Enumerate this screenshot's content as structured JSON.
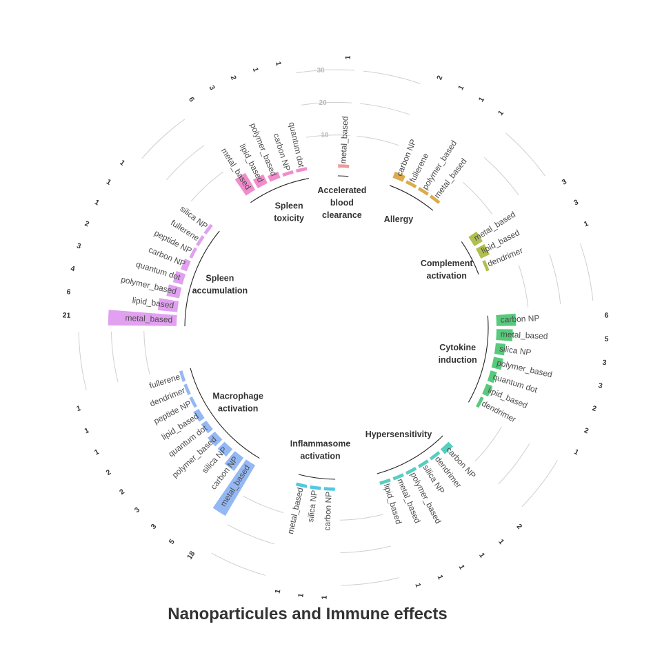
{
  "chart_data": {
    "type": "bar",
    "layout": "circular",
    "title": "Nanoparticules and Immune effects",
    "radial_ticks": [
      "10",
      "20",
      "30"
    ],
    "groups": [
      {
        "name": "Accelerated\nblood\nclearance",
        "color": "#EE8E8E",
        "bars": [
          {
            "label": "metal_based",
            "value": 1
          }
        ]
      },
      {
        "name": "Allergy",
        "color": "#D8A238",
        "bars": [
          {
            "label": "carbon NP",
            "value": 2
          },
          {
            "label": "fullerene",
            "value": 1
          },
          {
            "label": "polymer_based",
            "value": 1
          },
          {
            "label": "metal_based",
            "value": 1
          }
        ]
      },
      {
        "name": "Complement\nactivation",
        "color": "#A9B83E",
        "bars": [
          {
            "label": "metal_based",
            "value": 3
          },
          {
            "label": "lipid_based",
            "value": 3
          },
          {
            "label": "dendrimer",
            "value": 1
          }
        ]
      },
      {
        "name": "Cytokine\ninduction",
        "color": "#45C46E",
        "bars": [
          {
            "label": "carbon NP",
            "value": 6
          },
          {
            "label": "metal_based",
            "value": 5
          },
          {
            "label": "silica NP",
            "value": 3
          },
          {
            "label": "polymer_based",
            "value": 3
          },
          {
            "label": "quantum dot",
            "value": 2
          },
          {
            "label": "lipid_based",
            "value": 2
          },
          {
            "label": "dendrimer",
            "value": 1
          }
        ]
      },
      {
        "name": "Hypersensitivity",
        "color": "#45C9B8",
        "bars": [
          {
            "label": "carbon NP",
            "value": 2
          },
          {
            "label": "dendrimer",
            "value": 1
          },
          {
            "label": "silica NP",
            "value": 1
          },
          {
            "label": "polymer_based",
            "value": 1
          },
          {
            "label": "metal_based",
            "value": 1
          },
          {
            "label": "lipid_based",
            "value": 1
          }
        ]
      },
      {
        "name": "Inflammasome\nactivation",
        "color": "#3FC2DE",
        "bars": [
          {
            "label": "carbon NP",
            "value": 1
          },
          {
            "label": "silica NP",
            "value": 1
          },
          {
            "label": "metal_based",
            "value": 1
          }
        ]
      },
      {
        "name": "Macrophage\nactivation",
        "color": "#88B0F2",
        "bars": [
          {
            "label": "metal_based",
            "value": 18
          },
          {
            "label": "carbon NP",
            "value": 5
          },
          {
            "label": "silica NP",
            "value": 3
          },
          {
            "label": "polymer_based",
            "value": 3
          },
          {
            "label": "quantum dot",
            "value": 2
          },
          {
            "label": "lipid_based",
            "value": 2
          },
          {
            "label": "peptide NP",
            "value": 1
          },
          {
            "label": "dendrimer",
            "value": 1
          },
          {
            "label": "fullerene",
            "value": 1
          }
        ]
      },
      {
        "name": "Spleen\naccumulation",
        "color": "#DE96EE",
        "bars": [
          {
            "label": "metal_based",
            "value": 21
          },
          {
            "label": "lipid_based",
            "value": 6
          },
          {
            "label": "polymer_based",
            "value": 4
          },
          {
            "label": "quantum dot",
            "value": 3
          },
          {
            "label": "carbon NP",
            "value": 2
          },
          {
            "label": "peptide NP",
            "value": 1
          },
          {
            "label": "fullerene",
            "value": 1
          },
          {
            "label": "silica NP",
            "value": 1
          }
        ]
      },
      {
        "name": "Spleen\ntoxicity",
        "color": "#F07FC6",
        "bars": [
          {
            "label": "metal_based",
            "value": 6
          },
          {
            "label": "lipid_based",
            "value": 3
          },
          {
            "label": "polymer_based",
            "value": 2
          },
          {
            "label": "carbon NP",
            "value": 1
          },
          {
            "label": "quantum dot",
            "value": 1
          }
        ]
      }
    ]
  }
}
